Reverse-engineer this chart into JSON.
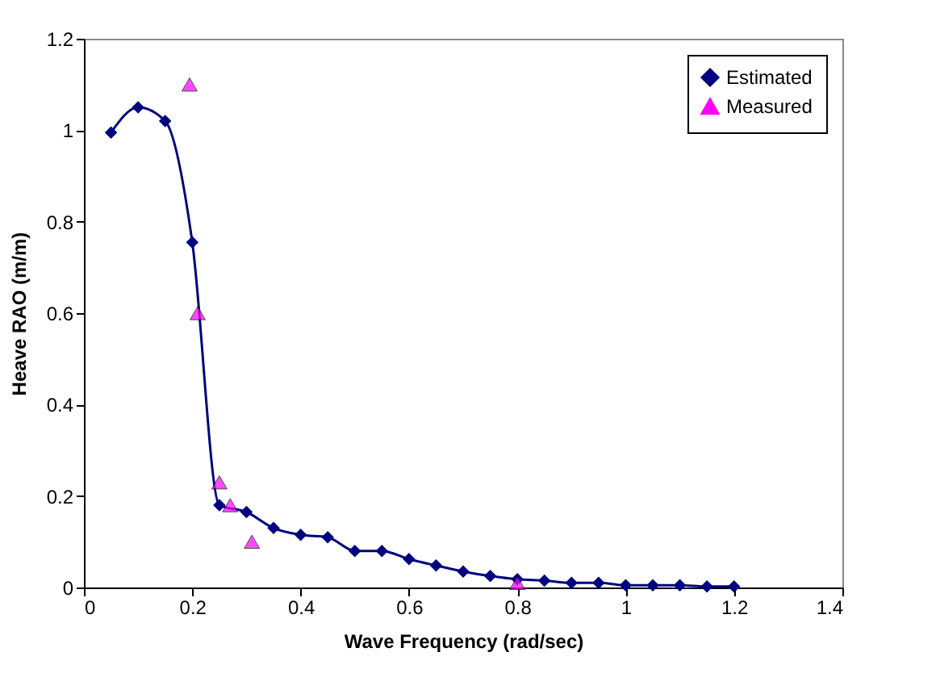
{
  "chart_data": {
    "type": "line",
    "xlabel": "Wave Frequency (rad/sec)",
    "ylabel": "Heave RAO (m/m)",
    "xlim": [
      0,
      1.4
    ],
    "xticks": [
      0,
      0.2,
      0.4,
      0.6,
      0.8,
      1,
      1.2,
      1.4
    ],
    "ylim": [
      0,
      1.2
    ],
    "yticks": [
      0,
      0.2,
      0.4,
      0.6,
      0.8,
      1,
      1.2
    ],
    "grid": false,
    "legend": "top right",
    "series": [
      {
        "name": "Estimated",
        "marker": "diamond",
        "color": "#000080",
        "x": [
          0.05,
          0.1,
          0.15,
          0.2,
          0.25,
          0.3,
          0.35,
          0.4,
          0.45,
          0.5,
          0.55,
          0.6,
          0.65,
          0.7,
          0.75,
          0.8,
          0.85,
          0.9,
          0.95,
          1.0,
          1.05,
          1.1,
          1.15,
          1.2
        ],
        "values": [
          0.995,
          1.05,
          1.02,
          0.755,
          0.18,
          0.165,
          0.13,
          0.115,
          0.11,
          0.08,
          0.08,
          0.062,
          0.048,
          0.035,
          0.025,
          0.018,
          0.015,
          0.01,
          0.01,
          0.005,
          0.005,
          0.005,
          0.002,
          0.002
        ]
      },
      {
        "name": "Measured",
        "type": "scatter",
        "marker": "triangle",
        "color": "#ff00ff",
        "x": [
          0.195,
          0.21,
          0.25,
          0.27,
          0.31,
          0.8
        ],
        "values": [
          1.1,
          0.6,
          0.23,
          0.18,
          0.1,
          0.01
        ]
      }
    ]
  }
}
